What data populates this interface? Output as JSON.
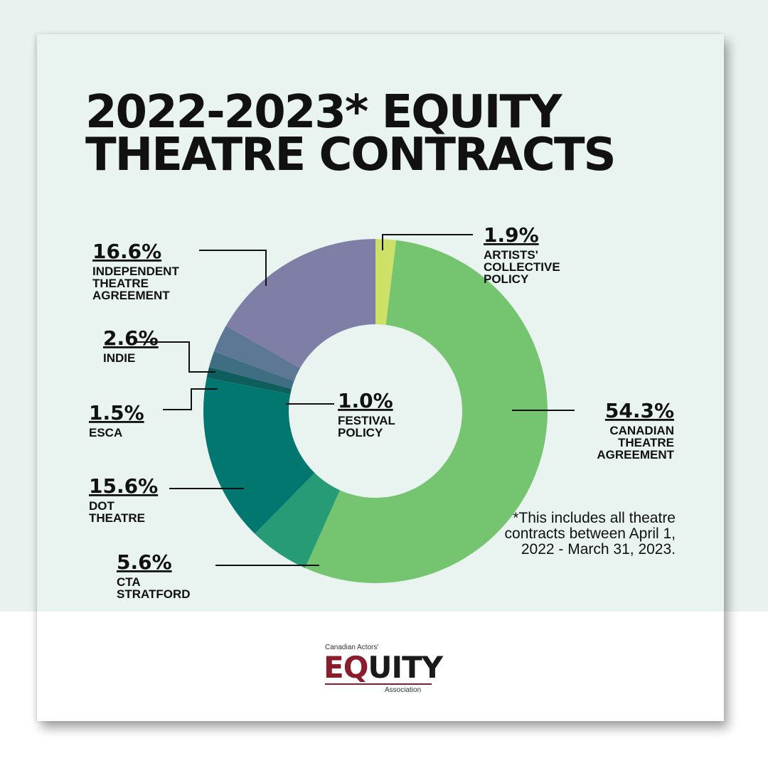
{
  "title": {
    "line1": "2022-2023* EQUITY",
    "line2": "THEATRE CONTRACTS"
  },
  "note": "*This includes all theatre contracts between April 1, 2022 - March 31, 2023.",
  "logo": {
    "top": "Canadian Actors'",
    "eq": "EQ",
    "rest": "UITY",
    "bottom": "Association"
  },
  "chart_data": {
    "type": "pie",
    "title": "2022-2023* EQUITY THEATRE CONTRACTS",
    "donut": true,
    "slices": [
      {
        "pct": "1.9%",
        "value": 1.9,
        "label": [
          "ARTISTS'",
          "COLLECTIVE",
          "POLICY"
        ],
        "color": "#cde068"
      },
      {
        "pct": "54.3%",
        "value": 54.3,
        "label": [
          "CANADIAN",
          "THEATRE",
          "AGREEMENT"
        ],
        "color": "#75c470"
      },
      {
        "pct": "5.6%",
        "value": 5.6,
        "label": [
          "CTA",
          "STRATFORD"
        ],
        "color": "#279b76"
      },
      {
        "pct": "15.6%",
        "value": 15.6,
        "label": [
          "DOT",
          "THEATRE"
        ],
        "color": "#02776f"
      },
      {
        "pct": "1.0%",
        "value": 1.0,
        "label": [
          "FESTIVAL",
          "POLICY"
        ],
        "color": "#0f5e5e"
      },
      {
        "pct": "1.5%",
        "value": 1.5,
        "label": [
          "ESCA"
        ],
        "color": "#3f6e82"
      },
      {
        "pct": "2.6%",
        "value": 2.6,
        "label": [
          "INDIE"
        ],
        "color": "#5d7894"
      },
      {
        "pct": "16.6%",
        "value": 16.6,
        "label": [
          "INDEPENDENT",
          "THEATRE",
          "AGREEMENT"
        ],
        "color": "#7e7ea6"
      }
    ]
  }
}
